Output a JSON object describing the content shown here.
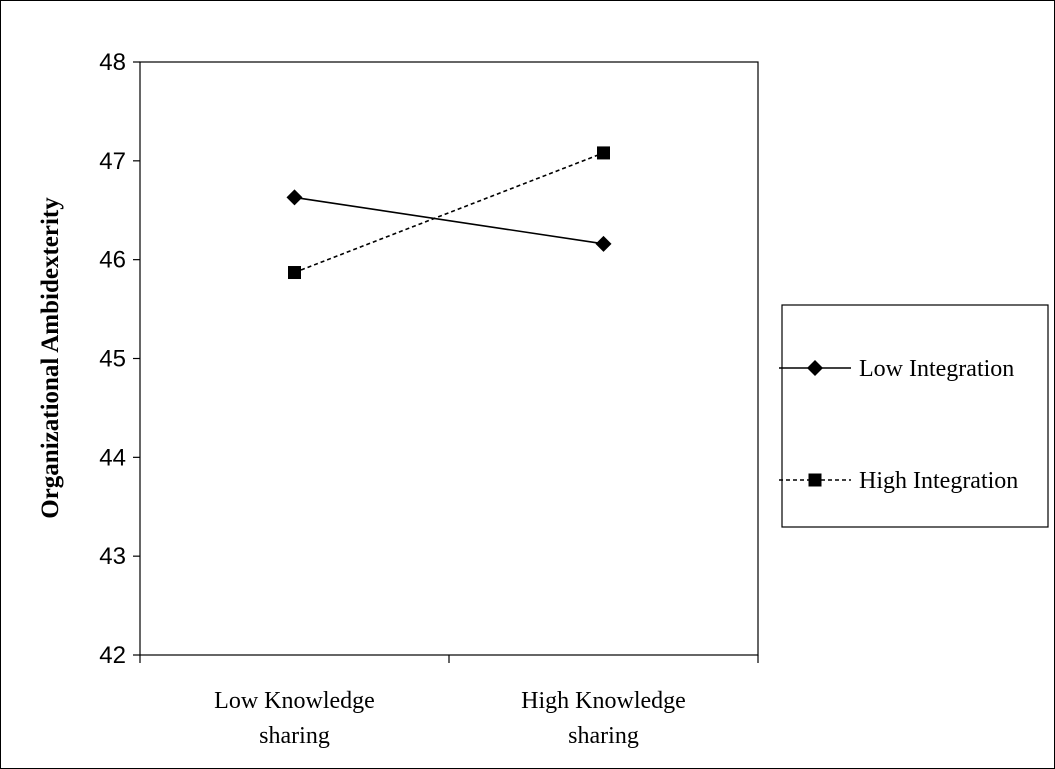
{
  "chart_data": {
    "type": "line",
    "title": "",
    "xlabel": "",
    "ylabel": "Organizational Ambidexterity",
    "categories": [
      [
        "Low Knowledge",
        "sharing"
      ],
      [
        "High Knowledge",
        "sharing"
      ]
    ],
    "ylim": [
      42,
      48
    ],
    "yticks": [
      42,
      43,
      44,
      45,
      46,
      47,
      48
    ],
    "grid": false,
    "legend_position": "right",
    "series": [
      {
        "name": "Low Integration",
        "values": [
          46.63,
          46.16
        ],
        "line_style": "solid",
        "marker": "diamond",
        "color": "#000000"
      },
      {
        "name": "High Integration",
        "values": [
          45.87,
          47.08
        ],
        "line_style": "dashed",
        "marker": "square",
        "color": "#000000"
      }
    ]
  }
}
